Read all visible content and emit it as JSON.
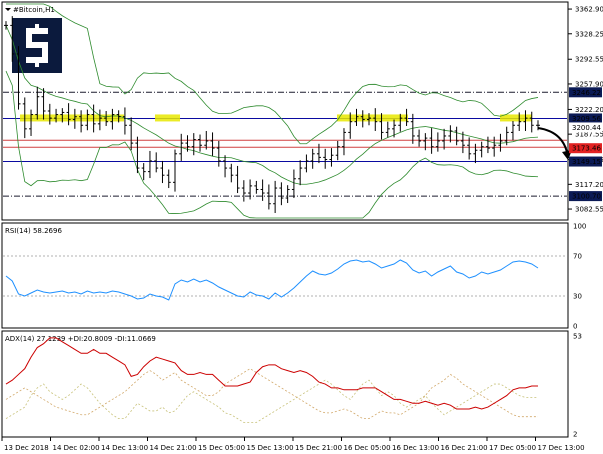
{
  "window": {
    "symbol_title": "#Bitcoin,H1",
    "menu_arrow_icon": "triangle-down-icon",
    "logo_icon": "dollar-s-icon"
  },
  "colors": {
    "candle": "#000000",
    "bb_band": "#2e8b2e",
    "rsi_line": "#1e90ff",
    "adx_main": "#cc0000",
    "plus_di": "#c8c27a",
    "minus_di": "#d2a96b",
    "sr_line": "#0a0aa0",
    "highlight": "#e8e800",
    "red_label": "#e32222",
    "navy_label": "#0b1a55"
  },
  "price_panel": {
    "axis_labels": [
      "3362.90",
      "3328.25",
      "3292.55",
      "3257.90",
      "3222.20",
      "3187.55",
      "3151.85",
      "3117.20",
      "3082.55"
    ],
    "level_tags": [
      {
        "text": "3246.22",
        "style": "navy"
      },
      {
        "text": "3209.56",
        "style": "navy"
      },
      {
        "text": "3200.44",
        "style": "plain"
      },
      {
        "text": "3173.46",
        "style": "red"
      },
      {
        "text": "3149.15",
        "style": "navy"
      },
      {
        "text": "3100.70",
        "style": "navy"
      }
    ]
  },
  "rsi_panel": {
    "label": "RSI(14) 58.2696",
    "axis_labels": [
      "100",
      "70",
      "30",
      "0"
    ]
  },
  "adx_panel": {
    "label": "ADX(14) 27.1239 +DI:20.8009 -DI:11.0669",
    "axis_labels": [
      "53",
      "2"
    ]
  },
  "time_axis": [
    "13 Dec 2018",
    "14 Dec 02:00",
    "14 Dec 13:00",
    "14 Dec 21:00",
    "15 Dec 05:00",
    "15 Dec 13:00",
    "15 Dec 21:00",
    "16 Dec 05:00",
    "16 Dec 13:00",
    "16 Dec 21:00",
    "17 Dec 05:00",
    "17 Dec 13:00"
  ],
  "chart_data": {
    "type": "candlestick",
    "symbol": "#Bitcoin,H1",
    "ylim": [
      3070,
      3370
    ],
    "levels": {
      "resistance_high": 3246.22,
      "resistance": 3209.56,
      "current": 3200.44,
      "mid": 3173.46,
      "support": 3149.15,
      "support_low": 3100.7
    },
    "close": [
      3340,
      3300,
      3230,
      3195,
      3215,
      3240,
      3220,
      3210,
      3215,
      3218,
      3208,
      3212,
      3200,
      3215,
      3202,
      3210,
      3205,
      3215,
      3212,
      3200,
      3175,
      3140,
      3135,
      3150,
      3140,
      3130,
      3120,
      3160,
      3175,
      3170,
      3180,
      3172,
      3178,
      3168,
      3150,
      3140,
      3130,
      3112,
      3105,
      3115,
      3110,
      3105,
      3090,
      3112,
      3098,
      3110,
      3125,
      3140,
      3150,
      3160,
      3155,
      3152,
      3158,
      3170,
      3190,
      3205,
      3212,
      3208,
      3210,
      3205,
      3190,
      3195,
      3200,
      3210,
      3205,
      3185,
      3178,
      3182,
      3170,
      3178,
      3185,
      3192,
      3178,
      3172,
      3160,
      3165,
      3170,
      3168,
      3172,
      3178,
      3190,
      3200,
      3205,
      3210,
      3200,
      3200
    ],
    "rsi": [
      50,
      45,
      32,
      30,
      33,
      36,
      34,
      33,
      34,
      35,
      33,
      34,
      32,
      35,
      33,
      34,
      33,
      35,
      34,
      32,
      30,
      27,
      28,
      32,
      30,
      29,
      26,
      42,
      46,
      44,
      47,
      44,
      46,
      43,
      39,
      36,
      33,
      30,
      29,
      34,
      31,
      30,
      27,
      33,
      29,
      33,
      38,
      44,
      50,
      55,
      52,
      51,
      53,
      57,
      62,
      65,
      66,
      64,
      65,
      62,
      58,
      60,
      62,
      66,
      63,
      56,
      53,
      55,
      50,
      54,
      57,
      60,
      54,
      52,
      48,
      50,
      54,
      52,
      54,
      56,
      60,
      64,
      65,
      64,
      62,
      58
    ],
    "adx": [
      28,
      30,
      33,
      36,
      42,
      47,
      49,
      52,
      52,
      50,
      48,
      46,
      44,
      44,
      46,
      44,
      44,
      42,
      40,
      38,
      32,
      33,
      37,
      40,
      42,
      41,
      40,
      39,
      35,
      33,
      33,
      34,
      33,
      33,
      30,
      27,
      27,
      27,
      28,
      29,
      34,
      37,
      38,
      38,
      36,
      35,
      34,
      35,
      34,
      32,
      29,
      28,
      26,
      26,
      25,
      25,
      25,
      26,
      26,
      26,
      24,
      22,
      20,
      20,
      19,
      18,
      18,
      19,
      18,
      17,
      18,
      17,
      15,
      15,
      15,
      16,
      15,
      16,
      18,
      20,
      22,
      25,
      26,
      26,
      27,
      27
    ],
    "plus_di": [
      10,
      12,
      14,
      16,
      22,
      26,
      28,
      24,
      22,
      20,
      22,
      25,
      28,
      26,
      22,
      18,
      15,
      12,
      10,
      10,
      14,
      18,
      16,
      14,
      14,
      16,
      13,
      14,
      18,
      22,
      24,
      22,
      20,
      18,
      16,
      13,
      12,
      10,
      8,
      8,
      8,
      10,
      12,
      14,
      16,
      18,
      20,
      22,
      24,
      26,
      28,
      30,
      28,
      25,
      22,
      20,
      24,
      28,
      30,
      26,
      22,
      24,
      22,
      18,
      16,
      18,
      20,
      22,
      18,
      15,
      12,
      14,
      16,
      18,
      20,
      22,
      24,
      26,
      28,
      28,
      26,
      24,
      22,
      21,
      21,
      21
    ],
    "minus_di": [
      20,
      22,
      24,
      26,
      24,
      22,
      20,
      18,
      16,
      15,
      14,
      13,
      12,
      12,
      14,
      16,
      18,
      20,
      22,
      24,
      27,
      30,
      33,
      35,
      33,
      30,
      32,
      34,
      30,
      28,
      26,
      24,
      22,
      22,
      24,
      28,
      30,
      32,
      34,
      36,
      34,
      32,
      30,
      28,
      26,
      24,
      22,
      20,
      18,
      16,
      14,
      13,
      13,
      14,
      15,
      14,
      12,
      10,
      10,
      12,
      14,
      13,
      13,
      12,
      14,
      16,
      18,
      22,
      26,
      28,
      30,
      33,
      31,
      28,
      26,
      24,
      22,
      20,
      18,
      16,
      14,
      12,
      11,
      11,
      11,
      11
    ]
  }
}
